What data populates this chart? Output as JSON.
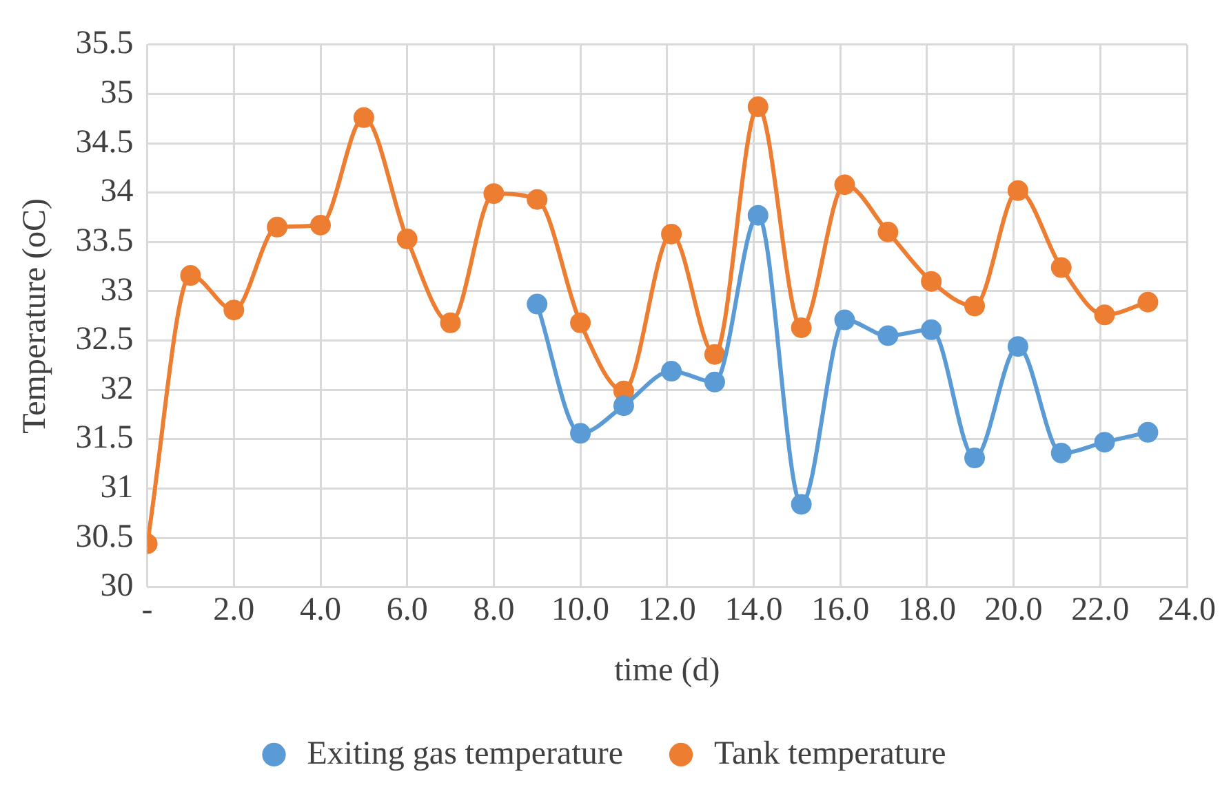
{
  "chart_data": {
    "type": "line",
    "xlabel": "time (d)",
    "ylabel": "Temperature (oC)",
    "xlim": [
      0,
      24
    ],
    "xticks": [
      {
        "value": 0,
        "label": "-"
      },
      {
        "value": 2,
        "label": "2.0"
      },
      {
        "value": 4,
        "label": "4.0"
      },
      {
        "value": 6,
        "label": "6.0"
      },
      {
        "value": 8,
        "label": "8.0"
      },
      {
        "value": 10,
        "label": "10.0"
      },
      {
        "value": 12,
        "label": "12.0"
      },
      {
        "value": 14,
        "label": "14.0"
      },
      {
        "value": 16,
        "label": "16.0"
      },
      {
        "value": 18,
        "label": "18.0"
      },
      {
        "value": 20,
        "label": "20.0"
      },
      {
        "value": 22,
        "label": "22.0"
      },
      {
        "value": 24,
        "label": "24.0"
      }
    ],
    "ylim": [
      30,
      35.5
    ],
    "yticks": [
      30,
      30.5,
      31,
      31.5,
      32,
      32.5,
      33,
      33.5,
      34,
      34.5,
      35,
      35.5
    ],
    "grid": true,
    "legend": "bottom",
    "marker": "circle",
    "line_style": "solid",
    "series": [
      {
        "name": "Exiting gas temperature",
        "color": "#5b9bd5",
        "x": [
          9,
          10,
          11,
          12.1,
          13.1,
          14.1,
          15.1,
          16.1,
          17.1,
          18.1,
          19.1,
          20.1,
          21.1,
          22.1,
          23.1
        ],
        "values": [
          32.87,
          31.56,
          31.84,
          32.19,
          32.08,
          33.77,
          30.84,
          32.71,
          32.55,
          32.61,
          31.31,
          32.44,
          31.36,
          31.47,
          31.57
        ]
      },
      {
        "name": "Tank temperature",
        "color": "#ed7d31",
        "x": [
          0,
          1,
          2,
          3,
          4,
          5,
          6,
          7,
          8,
          9,
          10,
          11,
          12.1,
          13.1,
          14.1,
          15.1,
          16.1,
          17.1,
          18.1,
          19.1,
          20.1,
          21.1,
          22.1,
          23.1
        ],
        "values": [
          30.44,
          33.16,
          32.81,
          33.65,
          33.67,
          34.76,
          33.53,
          32.68,
          33.99,
          33.93,
          32.68,
          31.99,
          33.58,
          32.36,
          34.87,
          32.63,
          34.08,
          33.6,
          33.1,
          32.85,
          34.02,
          33.24,
          32.76,
          32.89
        ]
      }
    ]
  }
}
